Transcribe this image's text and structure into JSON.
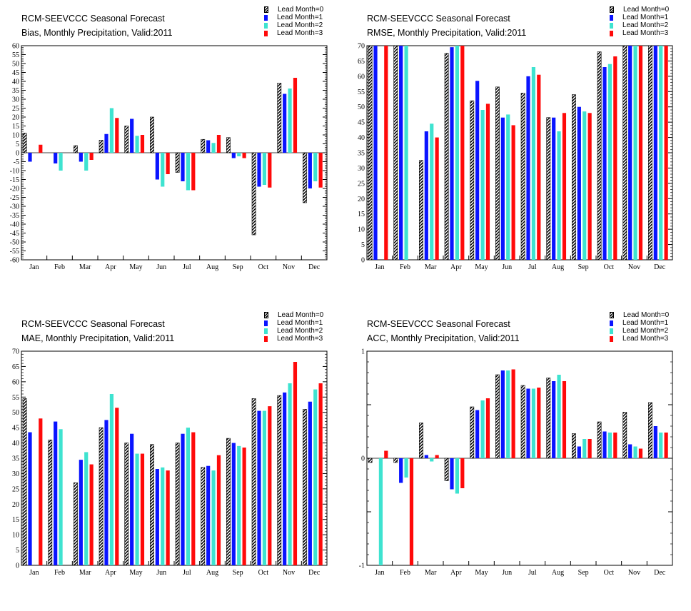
{
  "colors": {
    "lead0": "hatch-black-white",
    "lead1": "#0a14ff",
    "lead2": "#3ee3d0",
    "lead3": "#ff0a0a"
  },
  "chart_data": [
    {
      "type": "bar",
      "title": "RCM-SEEVCCC Seasonal Forecast",
      "subtitle": "Bias, Monthly Precipitation, Valid:2011",
      "categories": [
        "Jan",
        "Feb",
        "Mar",
        "Apr",
        "May",
        "Jun",
        "Jul",
        "Aug",
        "Sep",
        "Oct",
        "Nov",
        "Dec"
      ],
      "ylim": [
        -60,
        60
      ],
      "yticks": [
        -60,
        -55,
        -50,
        -45,
        -40,
        -35,
        -30,
        -25,
        -20,
        -15,
        -10,
        -5,
        0,
        5,
        10,
        15,
        20,
        25,
        30,
        35,
        40,
        45,
        50,
        55,
        60
      ],
      "ytick_labels": [
        "-60",
        "-55",
        "-50",
        "-45",
        "-40",
        "-35",
        "-30",
        "-25",
        "-20",
        "-15",
        "-10",
        "-5",
        "0",
        "5",
        "10",
        "15",
        "20",
        "25",
        "30",
        "35",
        "40",
        "45",
        "50",
        "55",
        "60"
      ],
      "series": [
        {
          "name": "Lead Month=0",
          "values": [
            11,
            0,
            4,
            7,
            15,
            20,
            -11,
            7.5,
            8.5,
            -46,
            39,
            -28
          ]
        },
        {
          "name": "Lead Month=1",
          "values": [
            -5,
            -6,
            -5,
            10.5,
            19,
            -15,
            -16,
            7,
            -3,
            -19,
            33,
            -20
          ]
        },
        {
          "name": "Lead Month=2",
          "values": [
            0,
            -10,
            -10,
            25,
            9.5,
            -19,
            -21,
            5.5,
            -2,
            -18,
            36,
            -16
          ]
        },
        {
          "name": "Lead Month=3",
          "values": [
            4.5,
            0,
            -4,
            19.5,
            10,
            -12,
            -21,
            10,
            -3,
            -19.5,
            42,
            -19.5
          ]
        }
      ]
    },
    {
      "type": "bar",
      "title": "RCM-SEEVCCC Seasonal Forecast",
      "subtitle": "RMSE, Monthly Precipitation, Valid:2011",
      "categories": [
        "Jan",
        "Feb",
        "Mar",
        "Apr",
        "May",
        "Jun",
        "Jul",
        "Aug",
        "Sep",
        "Oct",
        "Nov",
        "Dec"
      ],
      "ylim": [
        0,
        70
      ],
      "yticks": [
        0,
        5,
        10,
        15,
        20,
        25,
        30,
        35,
        40,
        45,
        50,
        55,
        60,
        65,
        70
      ],
      "ytick_labels": [
        "0",
        "5",
        "10",
        "15",
        "20",
        "25",
        "30",
        "35",
        "40",
        "45",
        "50",
        "55",
        "60",
        "65",
        "70"
      ],
      "series": [
        {
          "name": "Lead Month=0",
          "values": [
            70,
            70,
            32.5,
            67.5,
            52,
            56.5,
            54.5,
            46.5,
            54,
            68,
            70,
            70
          ]
        },
        {
          "name": "Lead Month=1",
          "values": [
            70,
            70,
            42,
            69.5,
            58.5,
            46.5,
            60,
            46.5,
            50,
            63,
            70,
            70
          ]
        },
        {
          "name": "Lead Month=2",
          "values": [
            0,
            70,
            44.5,
            70,
            49,
            47.5,
            63,
            42,
            48.5,
            64,
            70,
            70
          ]
        },
        {
          "name": "Lead Month=3",
          "values": [
            70,
            0,
            40,
            70,
            51,
            44,
            60.5,
            48,
            48,
            66.5,
            70,
            70
          ]
        }
      ]
    },
    {
      "type": "bar",
      "title": "RCM-SEEVCCC Seasonal Forecast",
      "subtitle": "MAE, Monthly Precipitation, Valid:2011",
      "categories": [
        "Jan",
        "Feb",
        "Mar",
        "Apr",
        "May",
        "Jun",
        "Jul",
        "Aug",
        "Sep",
        "Oct",
        "Nov",
        "Dec"
      ],
      "ylim": [
        0,
        70
      ],
      "yticks": [
        0,
        5,
        10,
        15,
        20,
        25,
        30,
        35,
        40,
        45,
        50,
        55,
        60,
        65,
        70
      ],
      "ytick_labels": [
        "0",
        "5",
        "10",
        "15",
        "20",
        "25",
        "30",
        "35",
        "40",
        "45",
        "50",
        "55",
        "60",
        "65",
        "70"
      ],
      "series": [
        {
          "name": "Lead Month=0",
          "values": [
            54.5,
            41,
            27,
            45,
            40,
            39.5,
            40,
            32,
            41.5,
            54.5,
            55.5,
            51
          ]
        },
        {
          "name": "Lead Month=1",
          "values": [
            43.5,
            47,
            34.5,
            47.5,
            43,
            31.5,
            43,
            32.5,
            40,
            50.5,
            56.5,
            53.5
          ]
        },
        {
          "name": "Lead Month=2",
          "values": [
            0,
            44.5,
            37,
            56,
            36.5,
            32,
            45,
            31,
            39,
            50.5,
            59.5,
            57.5
          ]
        },
        {
          "name": "Lead Month=3",
          "values": [
            48,
            0,
            33,
            51.5,
            36.5,
            31,
            43.5,
            36,
            38.5,
            52,
            66.5,
            59.5
          ]
        }
      ]
    },
    {
      "type": "bar",
      "title": "RCM-SEEVCCC Seasonal Forecast",
      "subtitle": "ACC, Monthly Precipitation, Valid:2011",
      "categories": [
        "Jan",
        "Feb",
        "Mar",
        "Apr",
        "May",
        "Jun",
        "Jul",
        "Aug",
        "Sep",
        "Oct",
        "Nov",
        "Dec"
      ],
      "ylim": [
        -1,
        1
      ],
      "yticks": [
        -1,
        -0.5,
        0,
        0.5,
        1
      ],
      "ytick_labels": [
        "-1",
        "",
        "0",
        "",
        "1"
      ],
      "series": [
        {
          "name": "Lead Month=0",
          "values": [
            -0.04,
            -0.04,
            0.33,
            -0.21,
            0.48,
            0.78,
            0.68,
            0.75,
            0.23,
            0.34,
            0.43,
            0.52
          ]
        },
        {
          "name": "Lead Month=1",
          "values": [
            0,
            -0.23,
            0.03,
            -0.29,
            0.45,
            0.82,
            0.65,
            0.72,
            0.11,
            0.25,
            0.13,
            0.3
          ]
        },
        {
          "name": "Lead Month=2",
          "values": [
            -1,
            -0.18,
            -0.03,
            -0.33,
            0.54,
            0.82,
            0.65,
            0.78,
            0.18,
            0.24,
            0.11,
            0.24
          ]
        },
        {
          "name": "Lead Month=3",
          "values": [
            0.07,
            -1,
            0.03,
            -0.28,
            0.56,
            0.83,
            0.66,
            0.72,
            0.18,
            0.24,
            0.09,
            0.24
          ]
        }
      ]
    }
  ]
}
